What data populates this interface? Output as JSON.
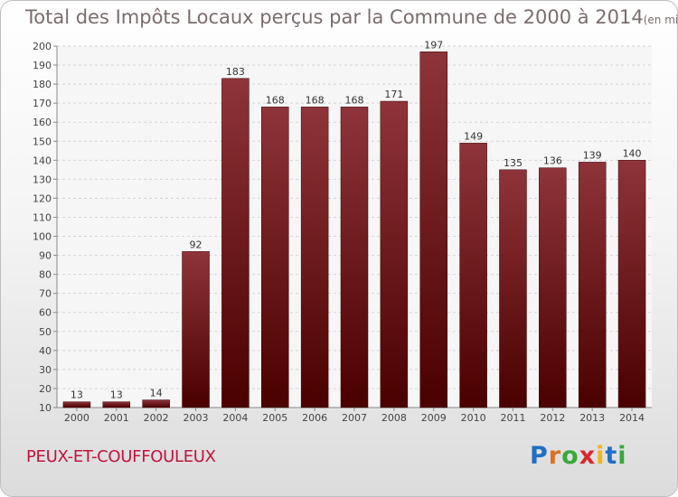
{
  "title": "Total des Impôts Locaux perçus par la Commune de 2000 à 2014",
  "title_unit": "(en milliers d'€)",
  "commune": "PEUX-ET-COUFFOULEUX",
  "logo_text": "Proxiti",
  "colors": {
    "bar_top": "#8e343a",
    "bar_bottom": "#4a0000",
    "commune": "#c0143c",
    "title": "#7a6c6c"
  },
  "chart_data": {
    "type": "bar",
    "title": "Total des Impôts Locaux perçus par la Commune de 2000 à 2014",
    "unit": "(en milliers d'€)",
    "categories": [
      "2000",
      "2001",
      "2002",
      "2003",
      "2004",
      "2005",
      "2006",
      "2007",
      "2008",
      "2009",
      "2010",
      "2011",
      "2012",
      "2013",
      "2014"
    ],
    "values": [
      13,
      13,
      14,
      92,
      183,
      168,
      168,
      168,
      171,
      197,
      149,
      135,
      136,
      139,
      140
    ],
    "ylim": [
      10,
      200
    ],
    "yticks": [
      10,
      20,
      30,
      40,
      50,
      60,
      70,
      80,
      90,
      100,
      110,
      120,
      130,
      140,
      150,
      160,
      170,
      180,
      190,
      200
    ],
    "grid": true,
    "data_labels": true
  }
}
